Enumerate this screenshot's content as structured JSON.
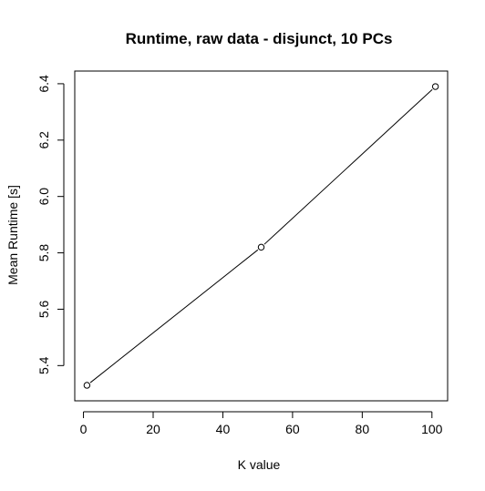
{
  "chart_data": {
    "type": "line",
    "title": "Runtime, raw data - disjunct, 10 PCs",
    "xlabel": "K value",
    "ylabel": "Mean Runtime [s]",
    "xlim": [
      -2.5,
      104.5
    ],
    "ylim": [
      5.275,
      6.445
    ],
    "x_ticks": [
      0,
      20,
      40,
      60,
      80,
      100
    ],
    "x_tick_labels": [
      "0",
      "20",
      "40",
      "60",
      "80",
      "100"
    ],
    "y_ticks": [
      5.4,
      5.6,
      5.8,
      6.0,
      6.2,
      6.4
    ],
    "y_tick_labels": [
      "5.4",
      "5.6",
      "5.8",
      "6.0",
      "6.2",
      "6.4"
    ],
    "series": [
      {
        "x": [
          1,
          51,
          101
        ],
        "y": [
          5.33,
          5.82,
          6.39
        ],
        "marker": "open-circle",
        "line": true,
        "color": "#000000"
      }
    ],
    "grid": false,
    "legend": "none"
  }
}
